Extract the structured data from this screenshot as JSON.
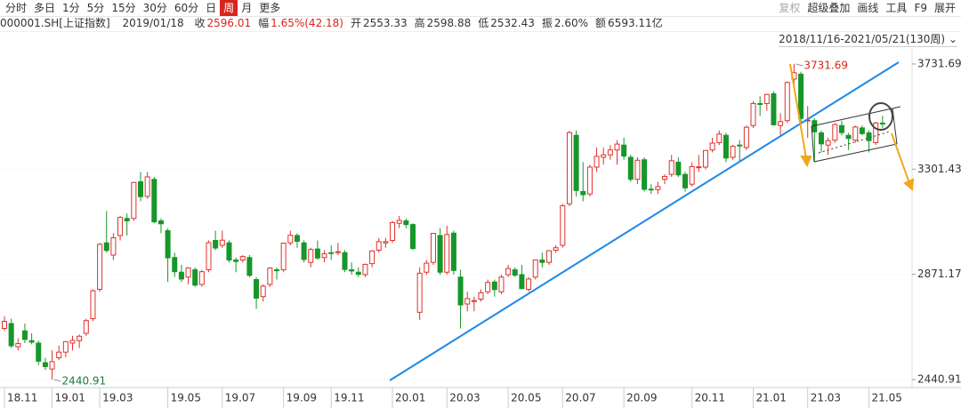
{
  "header": {
    "tabs": [
      "分时",
      "多日",
      "1分",
      "5分",
      "15分",
      "30分",
      "60分",
      "日",
      "周",
      "月",
      "更多"
    ],
    "active_tab": 8,
    "tools": [
      "复权",
      "超级叠加",
      "画线",
      "工具",
      "F9",
      "展开"
    ],
    "code": "000001.SH[上证指数]",
    "date": "2019/01/18",
    "stats": [
      {
        "label": "收",
        "value": "2596.01"
      },
      {
        "label": "幅",
        "value": "1.65%(42.18)"
      },
      {
        "label": "开",
        "value": "2553.33"
      },
      {
        "label": "高",
        "value": "2598.88"
      },
      {
        "label": "低",
        "value": "2532.43"
      },
      {
        "label": "振",
        "value": "2.60%"
      },
      {
        "label": "额",
        "value": "6593.11亿"
      }
    ],
    "range": "2018/11/16-2021/05/21(130周)"
  },
  "chart_data": {
    "type": "candlestick",
    "up_color": "#e0312b",
    "down_color": "#17962a",
    "grid": true,
    "ylim": [
      2411.8,
      3793.5
    ],
    "yticks": [
      3731.69,
      3301.43,
      2871.17,
      2440.91
    ],
    "xticks": [
      {
        "value": 0,
        "label": "18.11"
      },
      {
        "value": 7,
        "label": "19.01"
      },
      {
        "value": 14,
        "label": "19.03"
      },
      {
        "value": 24,
        "label": "19.05"
      },
      {
        "value": 32,
        "label": "19.07"
      },
      {
        "value": 41,
        "label": "19.09"
      },
      {
        "value": 48,
        "label": "19.11"
      },
      {
        "value": 57,
        "label": "20.01"
      },
      {
        "value": 65,
        "label": "20.03"
      },
      {
        "value": 74,
        "label": "20.05"
      },
      {
        "value": 82,
        "label": "20.07"
      },
      {
        "value": 91,
        "label": "20.09"
      },
      {
        "value": 101,
        "label": "20.11"
      },
      {
        "value": 110,
        "label": "21.01"
      },
      {
        "value": 118,
        "label": "21.03"
      },
      {
        "value": 127,
        "label": "21.05"
      }
    ],
    "high_index": 116,
    "low_index": 7,
    "ohlc": [
      [
        2650,
        2700,
        2640,
        2679
      ],
      [
        2670,
        2690,
        2570,
        2579
      ],
      [
        2575,
        2610,
        2560,
        2588
      ],
      [
        2640,
        2670,
        2590,
        2605
      ],
      [
        2600,
        2630,
        2585,
        2594
      ],
      [
        2590,
        2600,
        2500,
        2516
      ],
      [
        2510,
        2530,
        2480,
        2494
      ],
      [
        2484,
        2560,
        2440.91,
        2514
      ],
      [
        2530,
        2580,
        2520,
        2553
      ],
      [
        2553,
        2599,
        2532,
        2596
      ],
      [
        2590,
        2620,
        2560,
        2601
      ],
      [
        2600,
        2625,
        2570,
        2618
      ],
      [
        2630,
        2690,
        2620,
        2682
      ],
      [
        2690,
        2810,
        2680,
        2804
      ],
      [
        2810,
        3000,
        2800,
        2994
      ],
      [
        3000,
        3130,
        2960,
        2969
      ],
      [
        2950,
        3040,
        2930,
        3021
      ],
      [
        3030,
        3110,
        3010,
        3104
      ],
      [
        3100,
        3120,
        3030,
        3090
      ],
      [
        3100,
        3250,
        3090,
        3247
      ],
      [
        3250,
        3290,
        3170,
        3189
      ],
      [
        3190,
        3290,
        3180,
        3270
      ],
      [
        3260,
        3270,
        3080,
        3086
      ],
      [
        3090,
        3100,
        3040,
        3078
      ],
      [
        3050,
        3060,
        2840,
        2939
      ],
      [
        2940,
        2960,
        2860,
        2882
      ],
      [
        2880,
        2910,
        2840,
        2852
      ],
      [
        2860,
        2900,
        2830,
        2898
      ],
      [
        2890,
        2900,
        2820,
        2827
      ],
      [
        2830,
        2890,
        2820,
        2882
      ],
      [
        2890,
        3010,
        2880,
        3001
      ],
      [
        3010,
        3050,
        2970,
        2979
      ],
      [
        2990,
        3050,
        2980,
        3011
      ],
      [
        3000,
        3010,
        2920,
        2930
      ],
      [
        2930,
        2940,
        2880,
        2924
      ],
      [
        2930,
        2950,
        2920,
        2944
      ],
      [
        2940,
        2950,
        2860,
        2867
      ],
      [
        2850,
        2860,
        2730,
        2774
      ],
      [
        2780,
        2830,
        2760,
        2823
      ],
      [
        2830,
        2900,
        2820,
        2897
      ],
      [
        2890,
        2900,
        2850,
        2886
      ],
      [
        2890,
        3000,
        2880,
        2999
      ],
      [
        3000,
        3050,
        2990,
        3031
      ],
      [
        3030,
        3040,
        2980,
        3006
      ],
      [
        3000,
        3010,
        2920,
        2932
      ],
      [
        2920,
        2980,
        2900,
        2973
      ],
      [
        2975,
        3010,
        2930,
        2938
      ],
      [
        2940,
        2970,
        2920,
        2955
      ],
      [
        2960,
        2990,
        2930,
        2958
      ],
      [
        2960,
        3000,
        2950,
        2964
      ],
      [
        2960,
        2970,
        2880,
        2891
      ],
      [
        2890,
        2920,
        2870,
        2885
      ],
      [
        2880,
        2900,
        2860,
        2871
      ],
      [
        2870,
        2915,
        2860,
        2912
      ],
      [
        2915,
        2970,
        2900,
        2967
      ],
      [
        2970,
        3020,
        2960,
        3005
      ],
      [
        3000,
        3020,
        2980,
        3005
      ],
      [
        3010,
        3090,
        3000,
        3083
      ],
      [
        3080,
        3110,
        3060,
        3092
      ],
      [
        3090,
        3100,
        3060,
        3075
      ],
      [
        3075,
        3080,
        2970,
        2977
      ],
      [
        2716,
        2900,
        2685,
        2876
      ],
      [
        2880,
        2930,
        2870,
        2917
      ],
      [
        2920,
        3040,
        2910,
        3039
      ],
      [
        3030,
        3060,
        2870,
        2880
      ],
      [
        2880,
        3070,
        2870,
        3034
      ],
      [
        3040,
        3050,
        2870,
        2887
      ],
      [
        2860,
        2890,
        2650,
        2746
      ],
      [
        2750,
        2800,
        2720,
        2772
      ],
      [
        2760,
        2780,
        2720,
        2764
      ],
      [
        2770,
        2810,
        2760,
        2796
      ],
      [
        2800,
        2850,
        2790,
        2838
      ],
      [
        2840,
        2850,
        2780,
        2809
      ],
      [
        2800,
        2870,
        2790,
        2860
      ],
      [
        2870,
        2910,
        2860,
        2895
      ],
      [
        2890,
        2900,
        2860,
        2868
      ],
      [
        2870,
        2910,
        2810,
        2813
      ],
      [
        2810,
        2860,
        2800,
        2852
      ],
      [
        2860,
        2930,
        2850,
        2930
      ],
      [
        2930,
        2960,
        2900,
        2920
      ],
      [
        2920,
        2970,
        2910,
        2968
      ],
      [
        2970,
        2990,
        2960,
        2980
      ],
      [
        2990,
        3160,
        2980,
        3152
      ],
      [
        3160,
        3458,
        3150,
        3451
      ],
      [
        3440,
        3460,
        3190,
        3214
      ],
      [
        3210,
        3330,
        3170,
        3197
      ],
      [
        3200,
        3320,
        3190,
        3310
      ],
      [
        3310,
        3390,
        3290,
        3354
      ],
      [
        3350,
        3390,
        3320,
        3360
      ],
      [
        3360,
        3400,
        3340,
        3380
      ],
      [
        3380,
        3420,
        3320,
        3404
      ],
      [
        3400,
        3430,
        3340,
        3355
      ],
      [
        3350,
        3360,
        3250,
        3260
      ],
      [
        3260,
        3350,
        3240,
        3338
      ],
      [
        3340,
        3350,
        3210,
        3219
      ],
      [
        3220,
        3240,
        3200,
        3218
      ],
      [
        3218,
        3250,
        3200,
        3230
      ],
      [
        3260,
        3280,
        3240,
        3272
      ],
      [
        3280,
        3360,
        3270,
        3336
      ],
      [
        3330,
        3350,
        3270,
        3278
      ],
      [
        3280,
        3290,
        3210,
        3225
      ],
      [
        3240,
        3330,
        3230,
        3312
      ],
      [
        3310,
        3360,
        3290,
        3311
      ],
      [
        3310,
        3380,
        3300,
        3378
      ],
      [
        3380,
        3430,
        3370,
        3408
      ],
      [
        3410,
        3460,
        3400,
        3445
      ],
      [
        3440,
        3450,
        3330,
        3347
      ],
      [
        3350,
        3400,
        3340,
        3395
      ],
      [
        3400,
        3420,
        3330,
        3397
      ],
      [
        3390,
        3480,
        3380,
        3473
      ],
      [
        3480,
        3580,
        3470,
        3570
      ],
      [
        3570,
        3600,
        3520,
        3566
      ],
      [
        3570,
        3610,
        3540,
        3607
      ],
      [
        3610,
        3620,
        3480,
        3483
      ],
      [
        3480,
        3530,
        3440,
        3496
      ],
      [
        3500,
        3660,
        3490,
        3656
      ],
      [
        3670,
        3731.69,
        3640,
        3696
      ],
      [
        3690,
        3700,
        3490,
        3509
      ],
      [
        3500,
        3560,
        3430,
        3502
      ],
      [
        3500,
        3510,
        3330,
        3454
      ],
      [
        3450,
        3460,
        3370,
        3405
      ],
      [
        3400,
        3430,
        3360,
        3418
      ],
      [
        3420,
        3490,
        3410,
        3484
      ],
      [
        3480,
        3500,
        3440,
        3451
      ],
      [
        3440,
        3450,
        3380,
        3427
      ],
      [
        3420,
        3480,
        3410,
        3474
      ],
      [
        3470,
        3480,
        3440,
        3447
      ],
      [
        3450,
        3460,
        3370,
        3418
      ],
      [
        3410,
        3495,
        3400,
        3490
      ],
      [
        3490,
        3520,
        3470,
        3487
      ]
    ]
  }
}
